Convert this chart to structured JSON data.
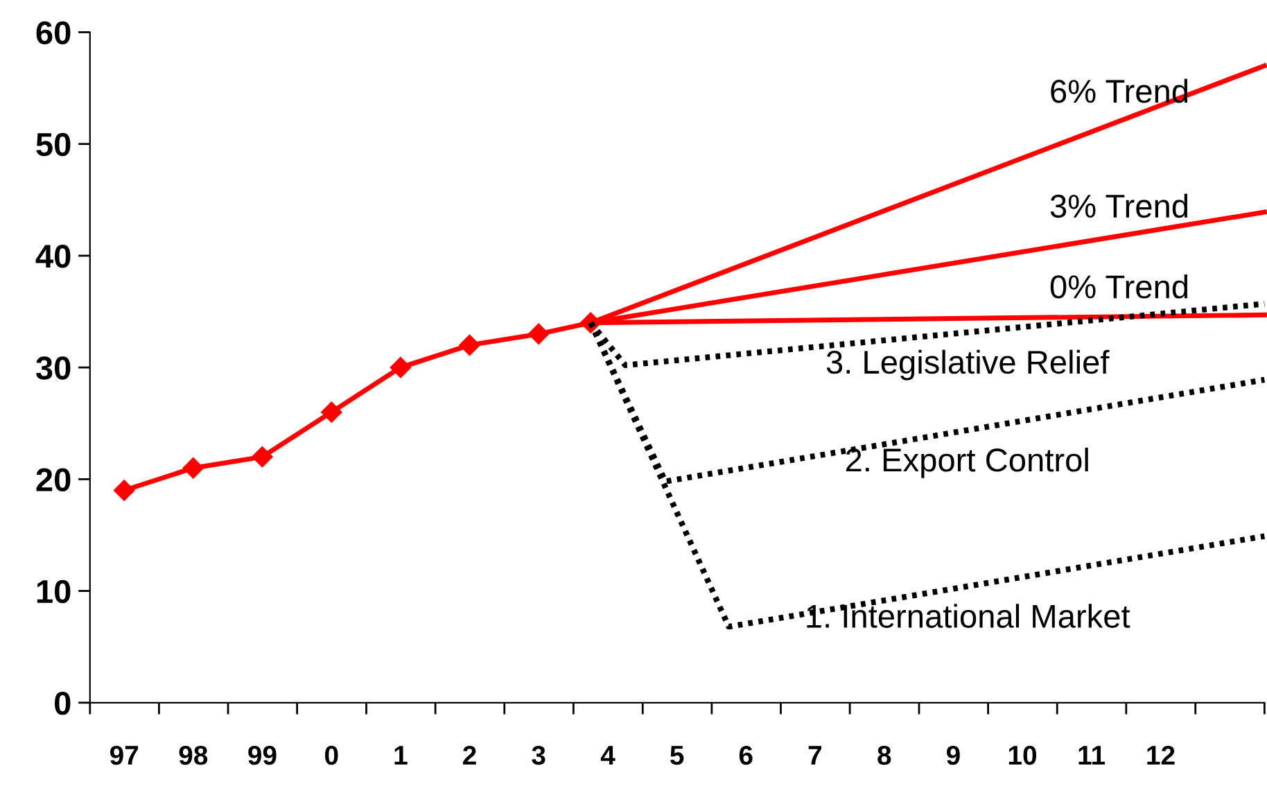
{
  "chart_data": {
    "type": "line",
    "ylim": [
      0,
      60
    ],
    "yticks": [
      0,
      10,
      20,
      30,
      40,
      50,
      60
    ],
    "xlim": [
      "1997-01-01",
      "2014-01-01"
    ],
    "xticks": [
      {
        "value": "1997-07-01",
        "label": "97"
      },
      {
        "value": "1998-07-01",
        "label": "98"
      },
      {
        "value": "1999-07-01",
        "label": "99"
      },
      {
        "value": "2000-07-01",
        "label": "0"
      },
      {
        "value": "2001-07-01",
        "label": "1"
      },
      {
        "value": "2002-07-01",
        "label": "2"
      },
      {
        "value": "2003-07-01",
        "label": "3"
      },
      {
        "value": "2004-07-01",
        "label": "4"
      },
      {
        "value": "2005-07-01",
        "label": "5"
      },
      {
        "value": "2006-07-01",
        "label": "6"
      },
      {
        "value": "2007-07-01",
        "label": "7"
      },
      {
        "value": "2008-07-01",
        "label": "8"
      },
      {
        "value": "2009-07-01",
        "label": "9"
      },
      {
        "value": "2010-07-01",
        "label": "10"
      },
      {
        "value": "2011-07-01",
        "label": "11"
      },
      {
        "value": "2012-07-01",
        "label": "12"
      },
      {
        "value": "1997-01-01",
        "label": null
      },
      {
        "value": "1998-01-01",
        "label": null
      },
      {
        "value": "1999-01-01",
        "label": null
      },
      {
        "value": "2000-01-01",
        "label": null
      },
      {
        "value": "2001-01-01",
        "label": null
      },
      {
        "value": "2002-01-01",
        "label": null
      },
      {
        "value": "2003-01-01",
        "label": null
      },
      {
        "value": "2004-01-01",
        "label": null
      },
      {
        "value": "2005-01-01",
        "label": null
      },
      {
        "value": "2006-01-01",
        "label": null
      },
      {
        "value": "2007-01-01",
        "label": null
      },
      {
        "value": "2008-01-01",
        "label": null
      },
      {
        "value": "2009-01-01",
        "label": null
      },
      {
        "value": "2010-01-01",
        "label": null
      },
      {
        "value": "2011-01-01",
        "label": null
      },
      {
        "value": "2012-01-01",
        "label": null
      },
      {
        "value": "2013-01-01",
        "label": null
      },
      {
        "value": "2014-01-01",
        "label": null
      }
    ],
    "grid": false,
    "legend": false,
    "series": [
      {
        "color": "#ff0000",
        "x": [
          "1997-07-01",
          "1998-07-01",
          "1999-07-01",
          "2000-07-01",
          "2001-07-01",
          "2002-07-01",
          "2003-07-01",
          "2004-04-01"
        ],
        "values": [
          19,
          21,
          22,
          26,
          30,
          32,
          33,
          34
        ],
        "marker": "diamond",
        "line_style": "solid"
      },
      {
        "name": "6% Trend",
        "color": "#ff0000",
        "x": [
          "2004-04-01",
          "2014-01-01"
        ],
        "values": [
          34,
          57.0
        ],
        "marker": "none",
        "line_style": "solid"
      },
      {
        "name": "3% Trend",
        "color": "#ff0000",
        "x": [
          "2004-04-01",
          "2014-01-01"
        ],
        "values": [
          34,
          43.9
        ],
        "marker": "none",
        "line_style": "solid"
      },
      {
        "name": "0% Trend",
        "color": "#ff0000",
        "x": [
          "2004-04-01",
          "2014-01-01"
        ],
        "values": [
          34,
          34.7
        ],
        "marker": "none",
        "line_style": "solid"
      },
      {
        "name": "3. Legislative Relief",
        "color": "#000000",
        "x": [
          "2004-04-01",
          "2004-10-01",
          "2014-01-01"
        ],
        "values": [
          34,
          30.2,
          35.7
        ],
        "marker": "none",
        "line_style": "dotted"
      },
      {
        "name": "2. Export Control",
        "color": "#000000",
        "x": [
          "2004-04-01",
          "2005-05-01",
          "2014-01-01"
        ],
        "values": [
          34,
          19.8,
          28.9
        ],
        "marker": "none",
        "line_style": "dotted"
      },
      {
        "name": "1. International Market",
        "color": "#000000",
        "x": [
          "2004-04-01",
          "2006-04-01",
          "2014-01-01"
        ],
        "values": [
          34,
          6.8,
          14.9
        ],
        "marker": "none",
        "line_style": "dotted"
      }
    ]
  }
}
